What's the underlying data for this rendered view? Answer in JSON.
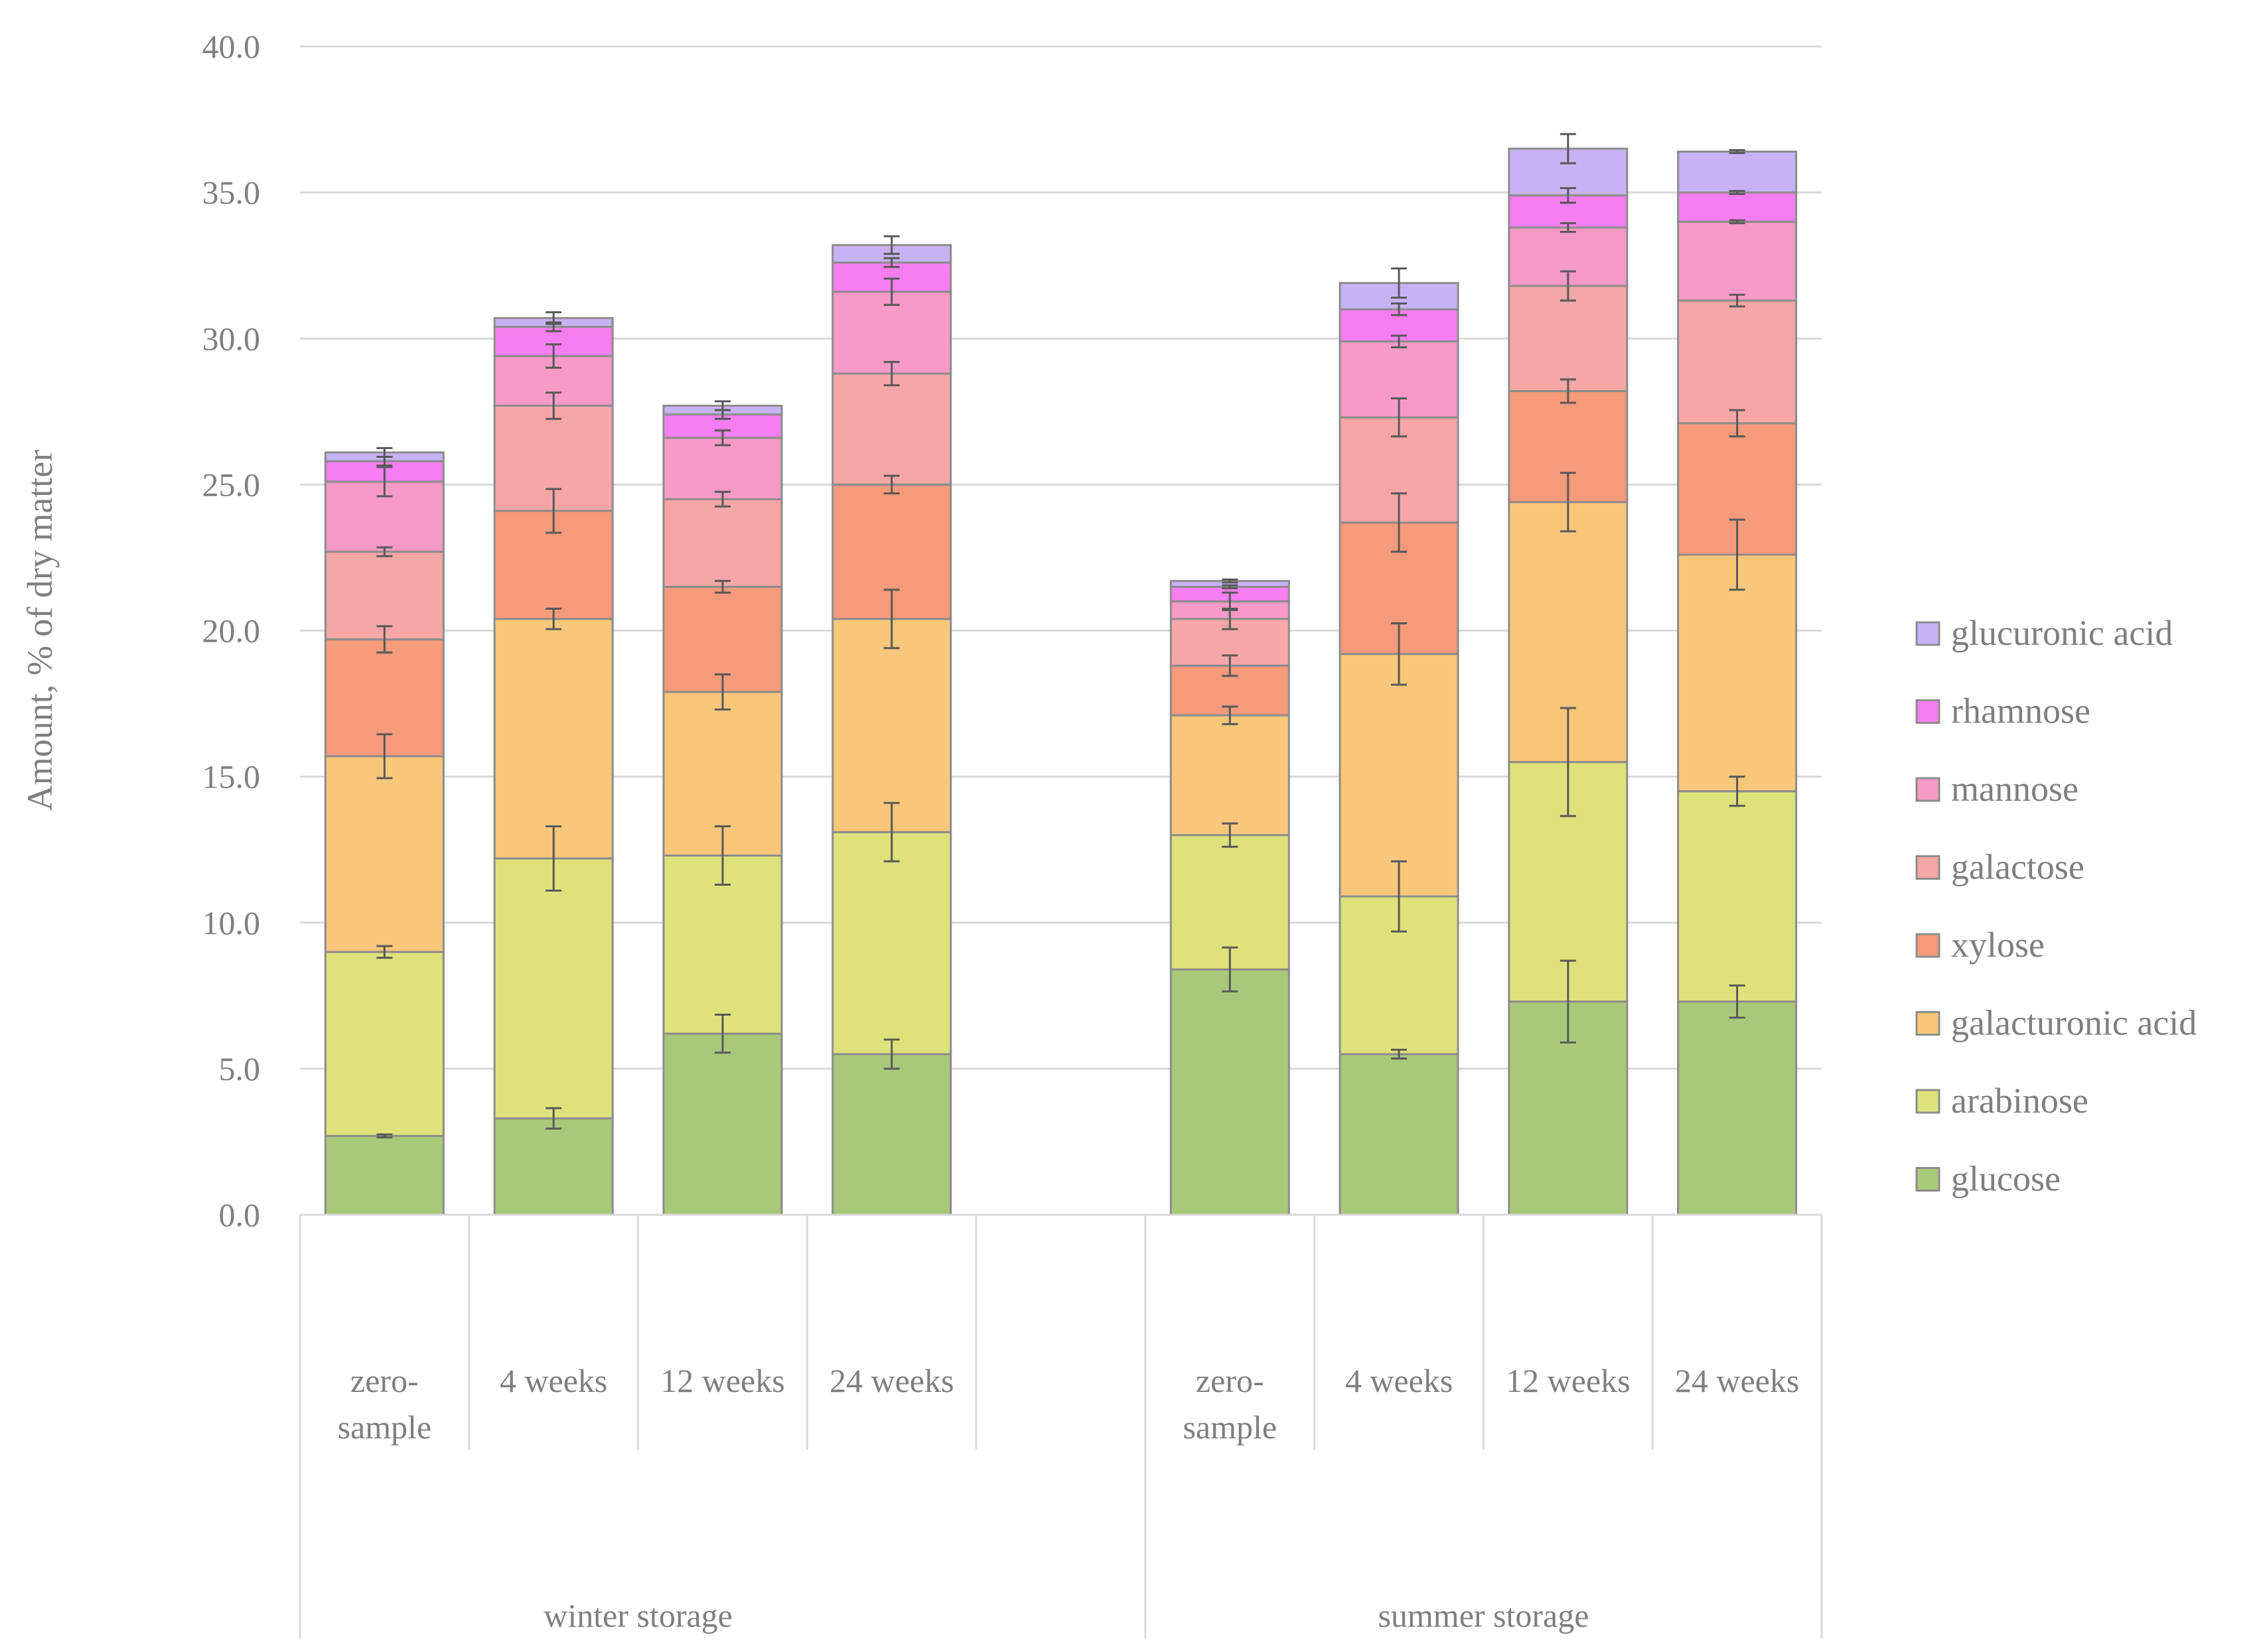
{
  "chart_data": {
    "type": "bar",
    "stacked": true,
    "title": "",
    "xlabel": "",
    "ylabel": "Amount, % of dry matter",
    "ylim": [
      0,
      40
    ],
    "yticks": [
      "0.0",
      "5.0",
      "10.0",
      "15.0",
      "20.0",
      "25.0",
      "30.0",
      "35.0",
      "40.0"
    ],
    "grid": true,
    "legend_position": "right",
    "groups": [
      {
        "name": "winter storage",
        "categories": [
          "zero-sample",
          "4 weeks",
          "12 weeks",
          "24 weeks"
        ]
      },
      {
        "name": "summer storage",
        "categories": [
          "zero-sample",
          "4 weeks",
          "12 weeks",
          "24 weeks"
        ]
      }
    ],
    "category_lines": [
      [
        [
          "zero-",
          "sample"
        ],
        [
          "4 weeks"
        ],
        [
          "12 weeks"
        ],
        [
          "24 weeks"
        ]
      ],
      [
        [
          "zero-",
          "sample"
        ],
        [
          "4 weeks"
        ],
        [
          "12 weeks"
        ],
        [
          "24 weeks"
        ]
      ]
    ],
    "series": [
      {
        "name": "glucose",
        "color": "#a9c97a",
        "values": [
          2.7,
          3.3,
          6.2,
          5.5,
          8.4,
          5.5,
          7.3,
          7.3
        ],
        "errors": [
          0.05,
          0.35,
          0.65,
          0.5,
          0.75,
          0.15,
          1.4,
          0.55
        ]
      },
      {
        "name": "arabinose",
        "color": "#dfe27a",
        "values": [
          6.3,
          8.9,
          6.1,
          7.6,
          4.6,
          5.4,
          8.2,
          7.2
        ],
        "errors": [
          0.2,
          1.1,
          1.0,
          1.0,
          0.4,
          1.2,
          1.85,
          0.5
        ]
      },
      {
        "name": "galacturonic acid",
        "color": "#f9c77a",
        "values": [
          6.7,
          8.2,
          5.6,
          7.3,
          4.1,
          8.3,
          8.9,
          8.1
        ],
        "errors": [
          0.75,
          0.35,
          0.6,
          1.0,
          0.3,
          1.05,
          1.0,
          1.2
        ]
      },
      {
        "name": "xylose",
        "color": "#f59a7a",
        "values": [
          4.0,
          3.7,
          3.6,
          4.6,
          1.7,
          4.5,
          3.8,
          4.5
        ],
        "errors": [
          0.45,
          0.75,
          0.2,
          0.3,
          0.35,
          1.0,
          0.4,
          0.45
        ]
      },
      {
        "name": "galactose",
        "color": "#f7a6a6",
        "values": [
          3.0,
          3.6,
          3.0,
          3.8,
          1.6,
          3.6,
          3.6,
          4.2
        ],
        "errors": [
          0.15,
          0.45,
          0.25,
          0.4,
          0.35,
          0.65,
          0.5,
          0.2
        ]
      },
      {
        "name": "mannose",
        "color": "#f79ac7",
        "values": [
          2.4,
          1.7,
          2.1,
          2.8,
          0.6,
          2.6,
          2.0,
          2.7
        ],
        "errors": [
          0.5,
          0.4,
          0.25,
          0.45,
          0.3,
          0.2,
          0.15,
          0.05
        ]
      },
      {
        "name": "rhamnose",
        "color": "#f77ef0",
        "values": [
          0.7,
          1.0,
          0.8,
          1.0,
          0.5,
          1.1,
          1.1,
          1.0
        ],
        "errors": [
          0.15,
          0.15,
          0.15,
          0.15,
          0.05,
          0.2,
          0.25,
          0.05
        ]
      },
      {
        "name": "glucuronic acid",
        "color": "#c8b2f5",
        "values": [
          0.3,
          0.3,
          0.3,
          0.6,
          0.2,
          0.9,
          1.6,
          1.4
        ],
        "errors": [
          0.15,
          0.2,
          0.15,
          0.3,
          0.05,
          0.5,
          0.5,
          0.05
        ]
      }
    ],
    "legend_order": [
      "glucuronic acid",
      "rhamnose",
      "mannose",
      "galactose",
      "xylose",
      "galacturonic acid",
      "arabinose",
      "glucose"
    ]
  }
}
